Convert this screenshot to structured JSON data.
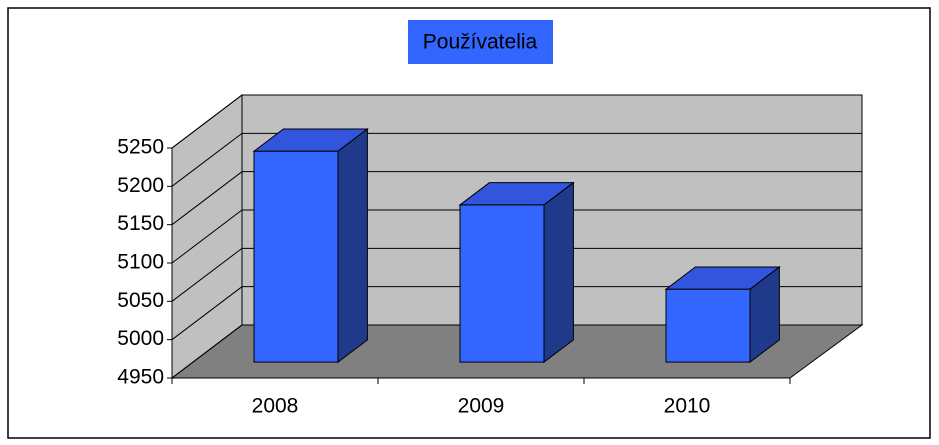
{
  "chart_data": {
    "type": "bar",
    "title": "Používatelia",
    "categories": [
      "2008",
      "2009",
      "2010"
    ],
    "values": [
      5225,
      5155,
      5045
    ],
    "color": "#3366ff",
    "ylim": [
      4950,
      5250
    ],
    "yticks": [
      4950,
      5000,
      5050,
      5100,
      5150,
      5200,
      5250
    ],
    "grid": true
  }
}
